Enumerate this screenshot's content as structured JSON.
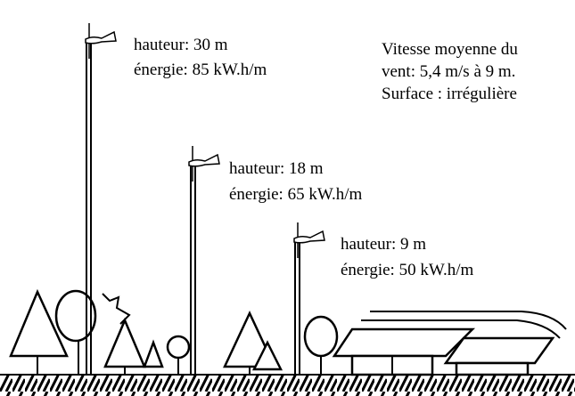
{
  "turbines": [
    {
      "height": "hauteur: 30 m",
      "energy": "énergie: 85 kW.h/m"
    },
    {
      "height": "hauteur: 18 m",
      "energy": "énergie: 65 kW.h/m"
    },
    {
      "height": "hauteur: 9 m",
      "energy": "énergie: 50 kW.h/m"
    }
  ],
  "note": {
    "lines": [
      "Vitesse moyenne du",
      "vent: 5,4 m/s à 9 m.",
      "Surface : irrégulière"
    ]
  }
}
